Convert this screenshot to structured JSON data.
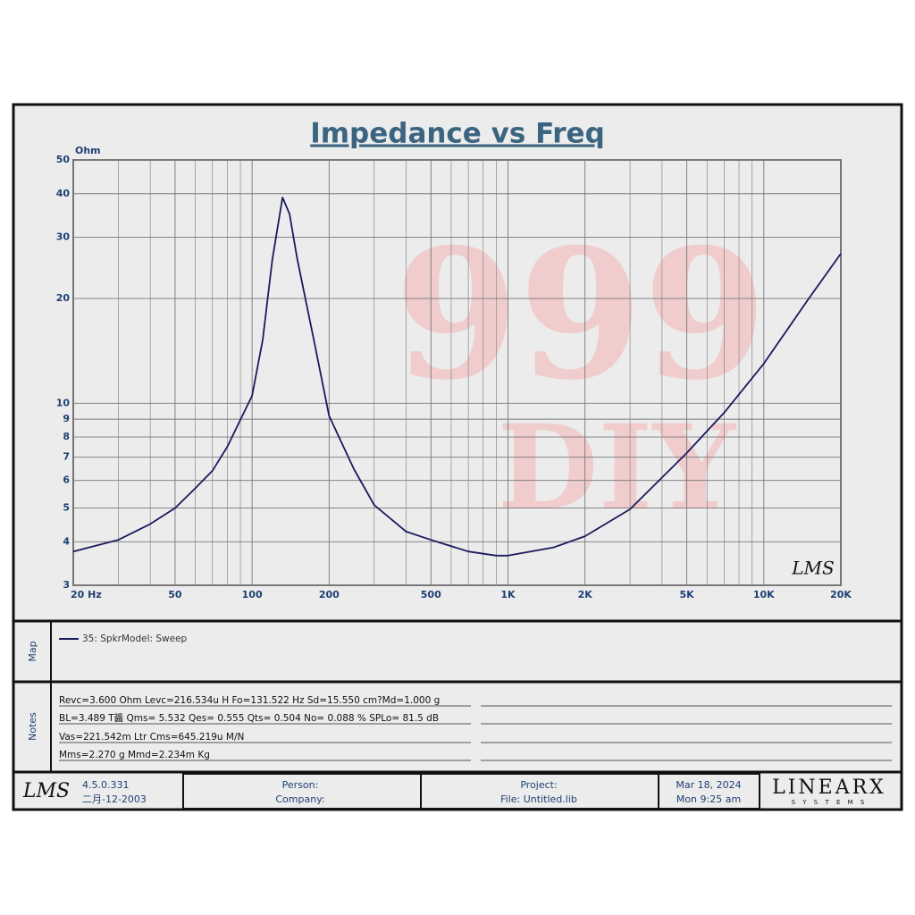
{
  "chart_data": {
    "type": "line",
    "title": "Impedance vs Freq",
    "y_label": "Ohm",
    "xscale": "log",
    "yscale": "log",
    "grid": true,
    "xlim": [
      20,
      20000
    ],
    "ylim": [
      3,
      50
    ],
    "xticks": [
      {
        "value": 20,
        "label": "20  Hz"
      },
      50,
      100,
      200,
      500,
      {
        "value": 1000,
        "label": "1K"
      },
      {
        "value": 2000,
        "label": "2K"
      },
      {
        "value": 5000,
        "label": "5K"
      },
      {
        "value": 10000,
        "label": "10K"
      },
      {
        "value": 20000,
        "label": "20K"
      }
    ],
    "xgrid": [
      30,
      40,
      60,
      70,
      80,
      90,
      300,
      400,
      600,
      700,
      800,
      900,
      3000,
      4000,
      6000,
      7000,
      8000,
      9000
    ],
    "yticks": [
      3,
      4,
      5,
      6,
      7,
      8,
      9,
      10,
      20,
      30,
      40,
      50
    ],
    "x": [
      20,
      30,
      40,
      50,
      60,
      70,
      80,
      90,
      100,
      110,
      120,
      131.5,
      140,
      150,
      175,
      200,
      250,
      300,
      400,
      500,
      700,
      900,
      1000,
      1500,
      2000,
      3000,
      5000,
      7000,
      10000,
      15000,
      20000
    ],
    "series": [
      {
        "name": "35: SpkrModel: Sweep",
        "color": "#1a1a5e",
        "values": [
          3.75,
          4.05,
          4.5,
          5.0,
          5.7,
          6.4,
          7.5,
          8.96,
          10.5,
          15.2,
          25.9,
          39,
          35,
          26,
          15,
          9.2,
          6.47,
          5.1,
          4.28,
          4.05,
          3.75,
          3.65,
          3.65,
          3.85,
          4.15,
          4.96,
          7.2,
          9.4,
          13,
          20,
          26.9
        ]
      }
    ]
  },
  "watermark": [
    "999",
    "DIY"
  ],
  "plot_logo": "LMS",
  "map_label": "Map",
  "notes_label": "Notes",
  "notes": [
    "Revc=3.600 Ohm  Levc=216.534u H  Fo=131.522 Hz  Sd=15.550 cm?Md=1.000 g",
    "BL=3.489 T醬  Qms= 5.532  Qes= 0.555  Qts= 0.504  No= 0.088 %  SPLo= 81.5 dB",
    "Vas=221.542m Ltr  Cms=645.219u M/N",
    "Mms=2.270 g  Mmd=2.234m Kg"
  ],
  "footer": {
    "logo": "LMS",
    "version": "4.5.0.331",
    "version_date": "二月-12-2003",
    "person": "Person:",
    "company": "Company:",
    "project": "Project:",
    "file": "File: Untitled.lib",
    "date": "Mar 18, 2024",
    "time": "Mon  9:25 am",
    "brand": "LINEARX",
    "brand_sub": "S Y S T E M S"
  }
}
